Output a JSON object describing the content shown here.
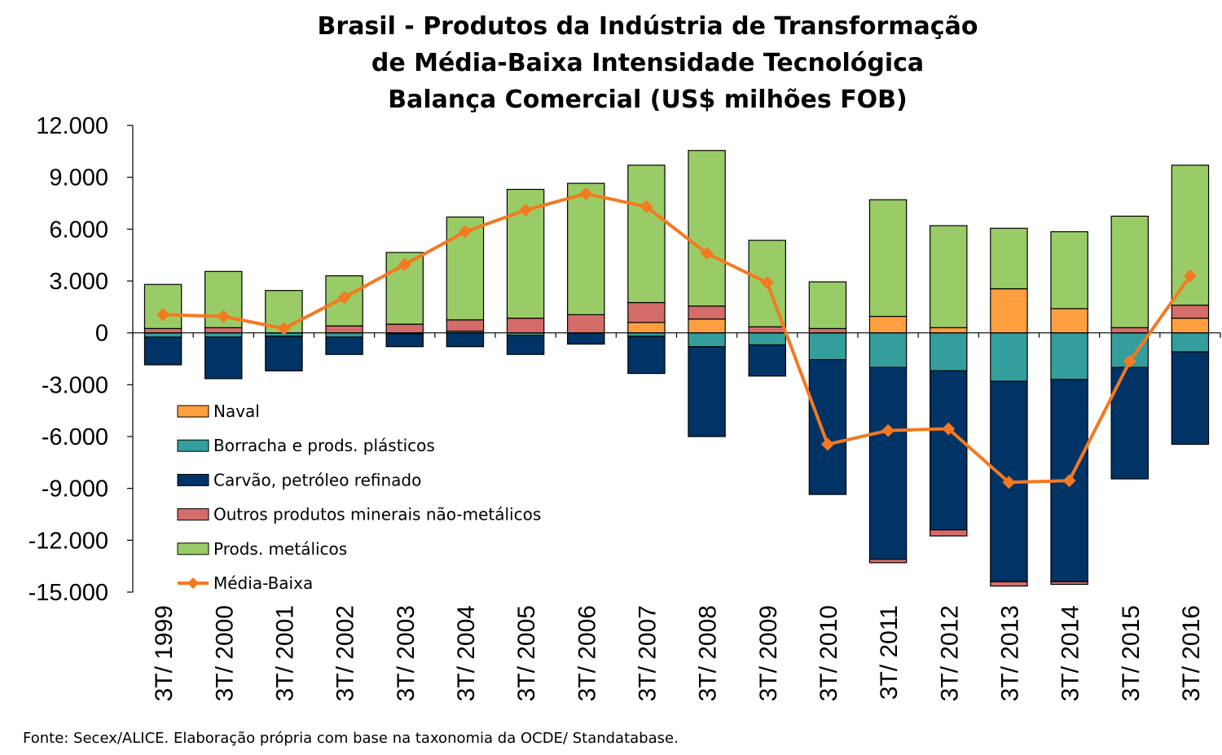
{
  "chart_data": {
    "type": "bar",
    "stacked": true,
    "title": [
      "Brasil - Produtos da Indústria de Transformação",
      "de Média-Baixa Intensidade Tecnológica",
      "Balança Comercial (US$ milhões FOB)"
    ],
    "source": "Fonte: Secex/ALICE. Elaboração própria com base na taxonomia da OCDE/ Standatabase.",
    "categories": [
      "3T/ 1999",
      "3T/ 2000",
      "3T/ 2001",
      "3T/ 2002",
      "3T/ 2003",
      "3T/ 2004",
      "3T/ 2005",
      "3T/ 2006",
      "3T/ 2007",
      "3T/ 2008",
      "3T/ 2009",
      "3T/ 2010",
      "3T/ 2011",
      "3T/ 2012",
      "3T/ 2013",
      "3T/ 2014",
      "3T/ 2015",
      "3T/ 2016"
    ],
    "ylim": [
      -15000,
      12000
    ],
    "yticks": [
      12000,
      9000,
      6000,
      3000,
      0,
      -3000,
      -6000,
      -9000,
      -12000,
      -15000
    ],
    "ytick_labels": [
      "12.000",
      "9.000",
      "6.000",
      "3.000",
      "0",
      "-3.000",
      "-6.000",
      "-9.000",
      "-12.000",
      "-15.000"
    ],
    "legend_position": "left, inside plot (lower-left)",
    "series": [
      {
        "name": "Naval",
        "kind": "bar",
        "color": "#FF9F3F",
        "values": [
          0,
          0,
          0,
          0,
          0,
          0,
          0,
          0,
          600,
          800,
          0,
          0,
          950,
          300,
          2550,
          1400,
          0,
          850
        ]
      },
      {
        "name": "Borracha e prods. plásticos",
        "kind": "bar",
        "color": "#339E9B",
        "values": [
          -250,
          -250,
          -200,
          -250,
          -50,
          100,
          -150,
          0,
          -200,
          -800,
          -700,
          -1550,
          -2000,
          -2200,
          -2800,
          -2700,
          -2000,
          -1100
        ]
      },
      {
        "name": "Carvão, petróleo refinado",
        "kind": "bar",
        "color": "#003366",
        "values": [
          -1600,
          -2400,
          -2000,
          -1000,
          -750,
          -800,
          -1100,
          -650,
          -2150,
          -5200,
          -1800,
          -7800,
          -11100,
          -9200,
          -11600,
          -11700,
          -6450,
          -5350
        ]
      },
      {
        "name": "Outros produtos minerais não-metálicos",
        "kind": "bar",
        "color": "#D46D6A",
        "values": [
          250,
          300,
          0,
          400,
          500,
          650,
          850,
          1050,
          1150,
          750,
          350,
          250,
          -200,
          -350,
          -250,
          -150,
          300,
          750
        ]
      },
      {
        "name": "Prods. metálicos",
        "kind": "bar",
        "color": "#99CC66",
        "values": [
          2550,
          3250,
          2450,
          2900,
          4150,
          5950,
          7450,
          7600,
          7950,
          9000,
          5000,
          2700,
          6750,
          5900,
          3500,
          4450,
          6450,
          8100
        ]
      },
      {
        "name": "Média-Baixa",
        "kind": "line",
        "color": "#F47920",
        "values": [
          1050,
          950,
          250,
          2050,
          3950,
          5850,
          7100,
          8050,
          7300,
          4600,
          2900,
          -6450,
          -5650,
          -5550,
          -8650,
          -8550,
          -1650,
          3300
        ]
      }
    ]
  }
}
